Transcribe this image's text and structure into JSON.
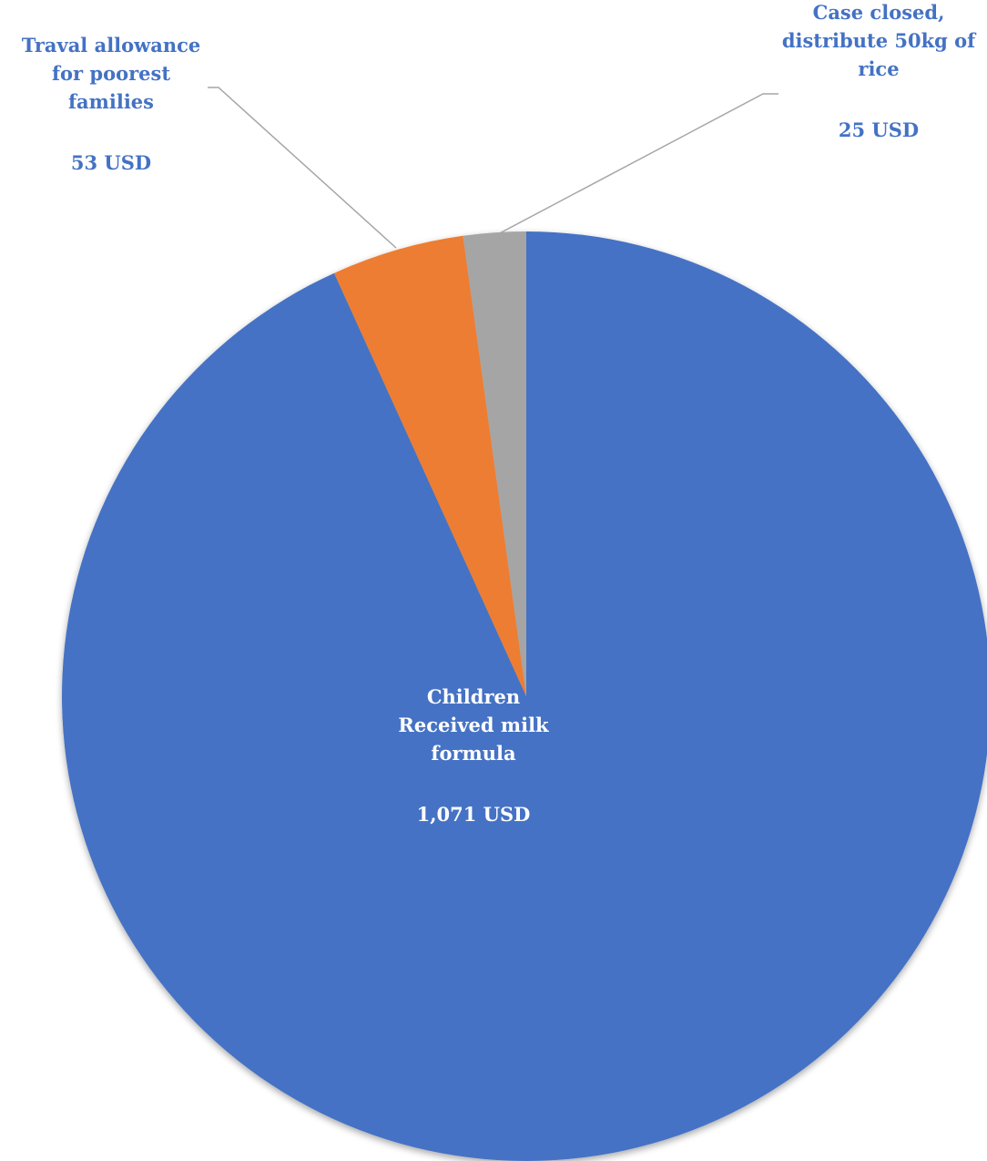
{
  "chart_data": {
    "type": "pie",
    "title": "",
    "start_angle": "12 o'clock",
    "direction": "clockwise",
    "legend": "none",
    "slices": [
      {
        "label_lines": [
          "Children",
          "Received milk",
          "formula"
        ],
        "value": 1071,
        "value_label": "1,071 USD",
        "color": "#4472C4"
      },
      {
        "label_lines": [
          "Traval allowance",
          "for poorest",
          "families"
        ],
        "value": 53,
        "value_label": "53 USD",
        "color": "#ED7D31"
      },
      {
        "label_lines": [
          "Case closed,",
          "distribute 50kg of",
          "rice"
        ],
        "value": 25,
        "value_label": "25 USD",
        "color": "#A5A5A5"
      }
    ],
    "colors": {
      "inside_label": "#FFFFFF",
      "outside_label": "#4472C4",
      "leader_line": "#A6A6A6"
    }
  }
}
